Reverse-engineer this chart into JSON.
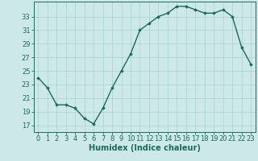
{
  "x": [
    0,
    1,
    2,
    3,
    4,
    5,
    6,
    7,
    8,
    9,
    10,
    11,
    12,
    13,
    14,
    15,
    16,
    17,
    18,
    19,
    20,
    21,
    22,
    23
  ],
  "y": [
    24.0,
    22.5,
    20.0,
    20.0,
    19.5,
    18.0,
    17.2,
    19.5,
    22.5,
    25.0,
    27.5,
    31.0,
    32.0,
    33.0,
    33.5,
    34.5,
    34.5,
    34.0,
    33.5,
    33.5,
    34.0,
    33.0,
    28.5,
    26.0
  ],
  "line_color": "#1a6b5a",
  "marker": "D",
  "markersize": 1.8,
  "linewidth": 1.0,
  "bg_color": "#cce8e8",
  "grid_color": "#aad0d0",
  "xlabel": "Humidex (Indice chaleur)",
  "yticks": [
    17,
    19,
    21,
    23,
    25,
    27,
    29,
    31,
    33
  ],
  "xticks": [
    0,
    1,
    2,
    3,
    4,
    5,
    6,
    7,
    8,
    9,
    10,
    11,
    12,
    13,
    14,
    15,
    16,
    17,
    18,
    19,
    20,
    21,
    22,
    23
  ],
  "xlim": [
    -0.5,
    23.5
  ],
  "ylim": [
    16.0,
    35.2
  ],
  "xlabel_fontsize": 7.0,
  "tick_fontsize": 6.0
}
